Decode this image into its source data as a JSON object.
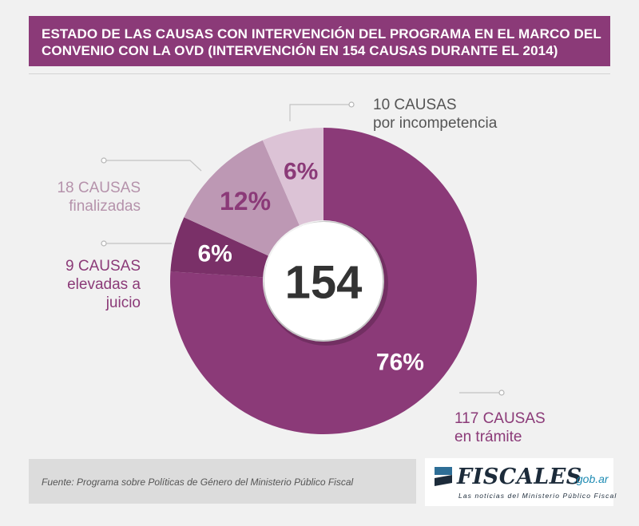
{
  "header": {
    "title_line1": "ESTADO DE LAS CAUSAS CON INTERVENCIÓN DEL PROGRAMA EN EL MARCO DEL",
    "title_line2": "CONVENIO CON LA OVD (INTERVENCIÓN EN 154 CAUSAS DURANTE EL 2014)"
  },
  "colors": {
    "header_bg": "#8b3a78",
    "tramite": "#8b3a78",
    "elevadas": "#7a3068",
    "finalizadas": "#bd98b4",
    "incompetencia": "#dcc3d6"
  },
  "chart_data": {
    "type": "pie",
    "style": "donut",
    "center_label": "154",
    "slices": [
      {
        "label_line1": "117 CAUSAS",
        "label_line2": "en trámite",
        "count": 117,
        "percent_label": "76%",
        "color": "#8b3a78"
      },
      {
        "label_line1": "9 CAUSAS",
        "label_line2": "elevadas a",
        "label_line3": "juicio",
        "count": 9,
        "percent_label": "6%",
        "color": "#7a3068"
      },
      {
        "label_line1": "18 CAUSAS",
        "label_line2": "finalizadas",
        "count": 18,
        "percent_label": "12%",
        "color": "#bd98b4"
      },
      {
        "label_line1": "10 CAUSAS",
        "label_line2": "por incompetencia",
        "count": 10,
        "percent_label": "6%",
        "color": "#dcc3d6"
      }
    ]
  },
  "footer": {
    "source": "Fuente: Programa sobre Políticas de Género del Ministerio Público Fiscal"
  },
  "logo": {
    "name": "FISCALES",
    "domain": ".gob.ar",
    "tagline": "Las noticias del Ministerio Público Fiscal"
  }
}
